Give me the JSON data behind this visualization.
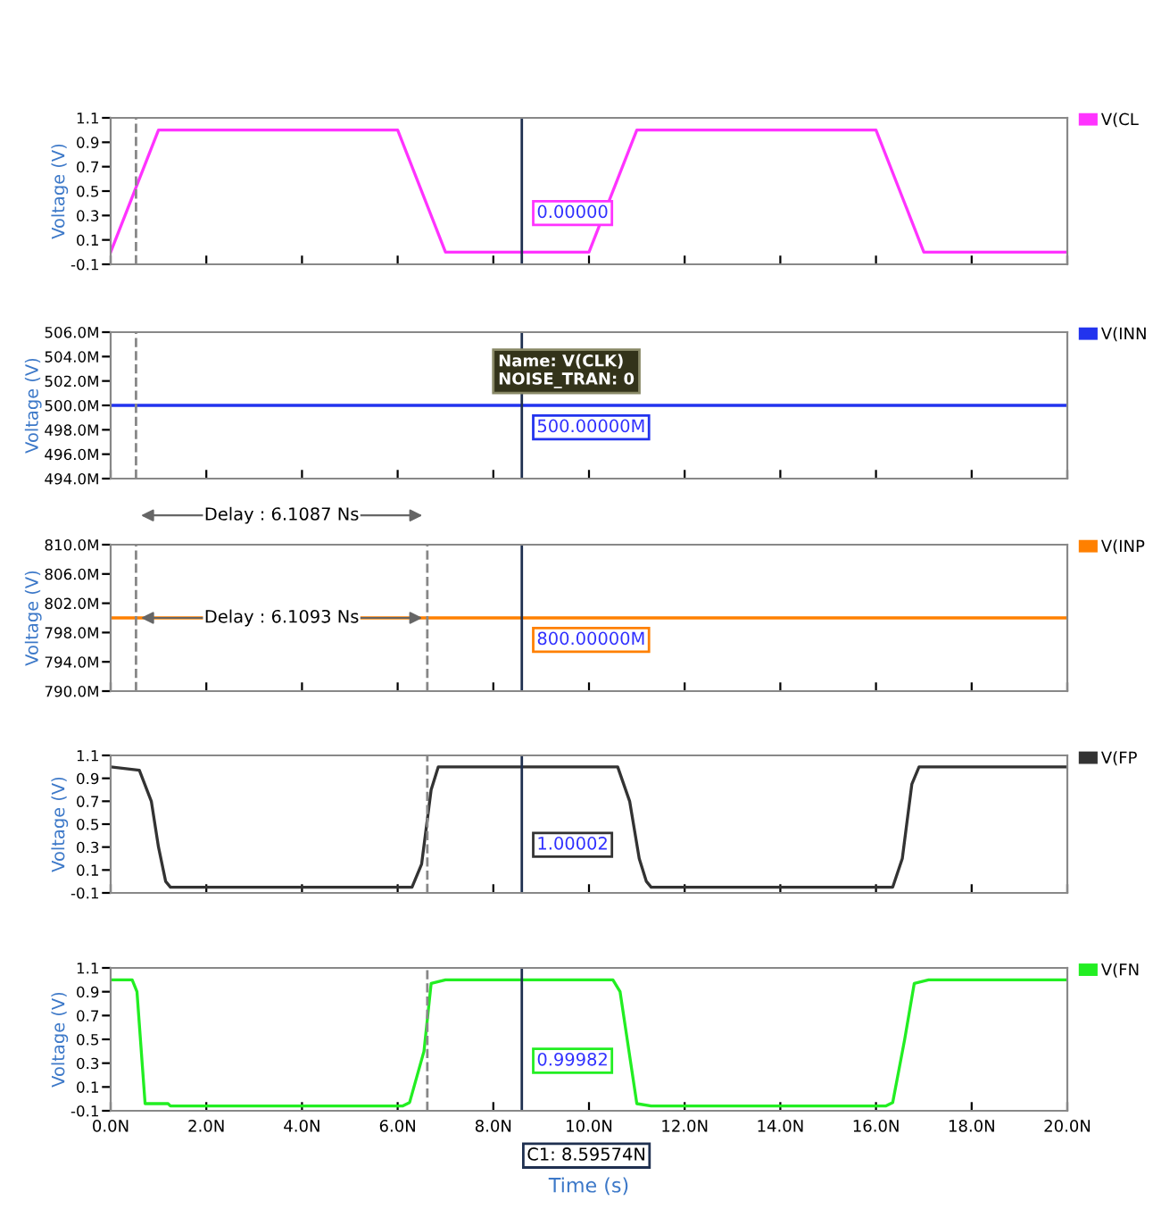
{
  "chart_data": [
    {
      "type": "line",
      "ylabel": "Voltage (V)",
      "xlim": [
        0,
        20
      ],
      "ylim": [
        -0.1,
        1.1
      ],
      "yticks": [
        -0.1,
        0.1,
        0.3,
        0.5,
        0.7,
        0.9,
        1.1
      ],
      "tick_labels": "y",
      "legend": "right",
      "xticks": [
        0,
        2,
        4,
        6,
        8,
        10,
        12,
        14,
        16,
        18,
        20
      ],
      "series": [
        {
          "name": "V(CL",
          "color": "#ff33ff",
          "x": [
            0,
            1,
            6,
            7,
            10,
            11,
            16,
            17,
            20
          ],
          "values": [
            0,
            1,
            1,
            0,
            0,
            1,
            1,
            0,
            0
          ]
        }
      ],
      "ref_lines": [
        {
          "axis": "x",
          "value": 8.59574,
          "color": "#1f3050"
        },
        {
          "axis": "x",
          "value": 0.53,
          "color": "#888888",
          "line_style": "dashed"
        }
      ],
      "annotations": [
        "0.00000"
      ]
    },
    {
      "type": "line",
      "ylabel": "Voltage (V)",
      "xlim": [
        0,
        20
      ],
      "ylim": [
        494,
        506
      ],
      "yticks": [
        {
          "value": 494,
          "label": "494.0M"
        },
        {
          "value": 496,
          "label": "496.0M"
        },
        {
          "value": 498,
          "label": "498.0M"
        },
        {
          "value": 500,
          "label": "500.0M"
        },
        {
          "value": 502,
          "label": "502.0M"
        },
        {
          "value": 504,
          "label": "504.0M"
        },
        {
          "value": 506,
          "label": "506.0M"
        }
      ],
      "tick_labels": "y",
      "legend": "right",
      "xticks": [
        0,
        2,
        4,
        6,
        8,
        10,
        12,
        14,
        16,
        18,
        20
      ],
      "series": [
        {
          "name": "V(INN",
          "color": "#2233ee",
          "x": [
            0,
            20
          ],
          "values": [
            500,
            500
          ]
        }
      ],
      "ref_lines": [
        {
          "axis": "x",
          "value": 8.59574,
          "color": "#1f3050"
        },
        {
          "axis": "x",
          "value": 0.53,
          "color": "#888888",
          "line_style": "dashed"
        }
      ],
      "annotations": [
        "500.00000M",
        "Name: V(CLK)\nNOISE_TRAN: 0"
      ]
    },
    {
      "type": "line",
      "ylabel": "Voltage (V)",
      "xlim": [
        0,
        20
      ],
      "ylim": [
        790,
        810
      ],
      "yticks": [
        {
          "value": 790,
          "label": "790.0M"
        },
        {
          "value": 794,
          "label": "794.0M"
        },
        {
          "value": 798,
          "label": "798.0M"
        },
        {
          "value": 802,
          "label": "802.0M"
        },
        {
          "value": 806,
          "label": "806.0M"
        },
        {
          "value": 810,
          "label": "810.0M"
        }
      ],
      "tick_labels": "y",
      "legend": "right",
      "xticks": [
        0,
        2,
        4,
        6,
        8,
        10,
        12,
        14,
        16,
        18,
        20
      ],
      "series": [
        {
          "name": "V(INP",
          "color": "#ff8000",
          "x": [
            0,
            20
          ],
          "values": [
            800,
            800
          ]
        }
      ],
      "ref_lines": [
        {
          "axis": "x",
          "value": 8.59574,
          "color": "#1f3050"
        },
        {
          "axis": "x",
          "value": 0.53,
          "color": "#888888",
          "line_style": "dashed"
        },
        {
          "axis": "x",
          "value": 6.62,
          "color": "#888888",
          "line_style": "dashed"
        }
      ],
      "annotations": [
        "800.00000M",
        "Delay : 6.1087 Ns",
        "Delay : 6.1093 Ns"
      ]
    },
    {
      "type": "line",
      "ylabel": "Voltage (V)",
      "xlim": [
        0,
        20
      ],
      "ylim": [
        -0.1,
        1.1
      ],
      "yticks": [
        -0.1,
        0.1,
        0.3,
        0.5,
        0.7,
        0.9,
        1.1
      ],
      "tick_labels": "y",
      "legend": "right",
      "xticks": [
        0,
        2,
        4,
        6,
        8,
        10,
        12,
        14,
        16,
        18,
        20
      ],
      "series": [
        {
          "name": "V(FP",
          "color": "#333333",
          "x": [
            0,
            0.6,
            0.85,
            1.0,
            1.15,
            1.25,
            6.3,
            6.5,
            6.7,
            6.85,
            10.6,
            10.85,
            11.05,
            11.2,
            11.3,
            16.35,
            16.55,
            16.75,
            16.9,
            20
          ],
          "values": [
            1,
            0.97,
            0.7,
            0.3,
            0.0,
            -0.05,
            -0.05,
            0.15,
            0.8,
            1,
            1,
            0.7,
            0.2,
            0.0,
            -0.05,
            -0.05,
            0.2,
            0.85,
            1,
            1
          ]
        }
      ],
      "ref_lines": [
        {
          "axis": "x",
          "value": 8.59574,
          "color": "#1f3050"
        },
        {
          "axis": "x",
          "value": 6.62,
          "color": "#888888",
          "line_style": "dashed"
        }
      ],
      "annotations": [
        "1.00002"
      ]
    },
    {
      "type": "line",
      "ylabel": "Voltage (V)",
      "xlabel": "Time (s)",
      "xlim": [
        0,
        20
      ],
      "ylim": [
        -0.1,
        1.1
      ],
      "yticks": [
        -0.1,
        0.1,
        0.3,
        0.5,
        0.7,
        0.9,
        1.1
      ],
      "legend": "right",
      "xticks": [
        {
          "value": 0,
          "label": "0.0N"
        },
        {
          "value": 2,
          "label": "2.0N"
        },
        {
          "value": 4,
          "label": "4.0N"
        },
        {
          "value": 6,
          "label": "6.0N"
        },
        {
          "value": 8,
          "label": "8.0N"
        },
        {
          "value": 10,
          "label": "10.0N"
        },
        {
          "value": 12,
          "label": "12.0N"
        },
        {
          "value": 14,
          "label": "14.0N"
        },
        {
          "value": 16,
          "label": "16.0N"
        },
        {
          "value": 18,
          "label": "18.0N"
        },
        {
          "value": 20,
          "label": "20.0N"
        }
      ],
      "series": [
        {
          "name": "V(FN",
          "color": "#22ee22",
          "x": [
            0,
            0.45,
            0.55,
            0.72,
            1.2,
            1.25,
            6.1,
            6.25,
            6.55,
            6.7,
            7.0,
            10.5,
            10.65,
            11.0,
            11.3,
            16.2,
            16.35,
            16.6,
            16.8,
            17.1,
            20
          ],
          "values": [
            1,
            1,
            0.9,
            -0.04,
            -0.04,
            -0.06,
            -0.06,
            -0.03,
            0.4,
            0.97,
            1,
            1,
            0.9,
            -0.04,
            -0.06,
            -0.06,
            -0.03,
            0.5,
            0.97,
            1,
            1
          ]
        }
      ],
      "ref_lines": [
        {
          "axis": "x",
          "value": 8.59574,
          "label": "C1: 8.59574N",
          "color": "#1f3050"
        },
        {
          "axis": "x",
          "value": 6.62,
          "color": "#888888",
          "line_style": "dashed"
        }
      ],
      "annotations": [
        "0.99982"
      ]
    }
  ]
}
